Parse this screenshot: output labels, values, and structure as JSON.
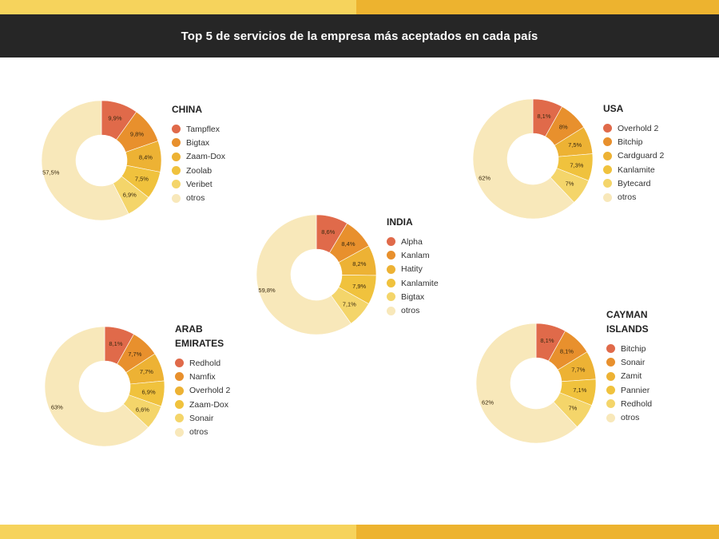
{
  "header": {
    "title": "Top 5 de servicios de la empresa más aceptados en cada país"
  },
  "colors": {
    "band_left": "#f6d35c",
    "band_right": "#edb32f",
    "slices": [
      "#e06a4a",
      "#e8902d",
      "#edb234",
      "#f0c23d",
      "#f4d56a",
      "#f8e8ba"
    ]
  },
  "chart_data": [
    {
      "type": "pie",
      "style": "donut",
      "title": "CHINA",
      "labels": [
        "Tampflex",
        "Bigtax",
        "Zaam-Dox",
        "Zoolab",
        "Veribet",
        "otros"
      ],
      "values": [
        9.9,
        9.8,
        8.4,
        7.5,
        6.9,
        57.5
      ],
      "value_labels": [
        "9,9%",
        "9,8%",
        "8,4%",
        "7,5%",
        "6,9%",
        "57,5%"
      ]
    },
    {
      "type": "pie",
      "style": "donut",
      "title": "USA",
      "labels": [
        "Overhold 2",
        "Bitchip",
        "Cardguard 2",
        "Kanlamite",
        "Bytecard",
        "otros"
      ],
      "values": [
        8.1,
        8,
        7.5,
        7.3,
        7,
        62
      ],
      "value_labels": [
        "8,1%",
        "8%",
        "7,5%",
        "7,3%",
        "7%",
        "62%"
      ]
    },
    {
      "type": "pie",
      "style": "donut",
      "title": "INDIA",
      "labels": [
        "Alpha",
        "Kanlam",
        "Hatity",
        "Kanlamite",
        "Bigtax",
        "otros"
      ],
      "values": [
        8.6,
        8.4,
        8.2,
        7.9,
        7.1,
        59.8
      ],
      "value_labels": [
        "8,6%",
        "8,4%",
        "8,2%",
        "7,9%",
        "7,1%",
        "59,8%"
      ]
    },
    {
      "type": "pie",
      "style": "donut",
      "title": "ARAB EMIRATES",
      "labels": [
        "Redhold",
        "Namfix",
        "Overhold 2",
        "Zaam-Dox",
        "Sonair",
        "otros"
      ],
      "values": [
        8.1,
        7.7,
        7.7,
        6.9,
        6.6,
        63
      ],
      "value_labels": [
        "8,1%",
        "7,7%",
        "7,7%",
        "6,9%",
        "6,6%",
        "63%"
      ]
    },
    {
      "type": "pie",
      "style": "donut",
      "title": "CAYMAN ISLANDS",
      "labels": [
        "Bitchip",
        "Sonair",
        "Zamit",
        "Pannier",
        "Redhold",
        "otros"
      ],
      "values": [
        8.1,
        8.1,
        7.7,
        7.1,
        7,
        62
      ],
      "value_labels": [
        "8,1%",
        "8,1%",
        "7,7%",
        "7,1%",
        "7%",
        "62%"
      ]
    }
  ]
}
